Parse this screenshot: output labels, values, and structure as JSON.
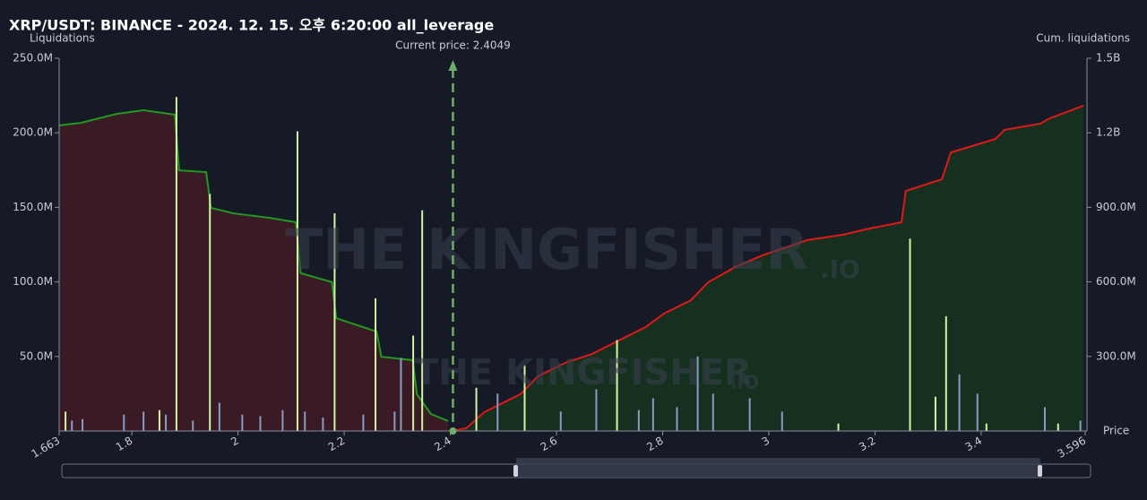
{
  "chart_data": {
    "type": "combo",
    "title": "XRP/USDT: BINANCE - 2024. 12. 15. 오후 6:20:00 all_leverage",
    "y_label": "Liquidations",
    "y2_label": "Cum. liquidations",
    "x_label": "Price",
    "watermark": [
      "THE KINGFISHER",
      ".IO"
    ],
    "annotation": {
      "text": "Current price: 2.4049",
      "x": 2.4049,
      "color": "#6fae6a"
    },
    "xlim": [
      1.663,
      3.596
    ],
    "xticks": [
      1.663,
      1.8,
      2,
      2.2,
      2.4,
      2.6,
      2.8,
      3,
      3.2,
      3.4,
      3.596
    ],
    "ylim": [
      0,
      250000000
    ],
    "yticks": [
      {
        "value": 50000000,
        "label": "50.0M"
      },
      {
        "value": 100000000,
        "label": "100.0M"
      },
      {
        "value": 150000000,
        "label": "150.0M"
      },
      {
        "value": 200000000,
        "label": "200.0M"
      },
      {
        "value": 250000000,
        "label": "250.0M"
      }
    ],
    "y2lim": [
      0,
      1500000000
    ],
    "y2ticks": [
      {
        "value": 300000000,
        "label": "300.0M"
      },
      {
        "value": 600000000,
        "label": "600.0M"
      },
      {
        "value": 900000000,
        "label": "900.0M"
      },
      {
        "value": 1200000000,
        "label": "1.2B"
      },
      {
        "value": 1500000000,
        "label": "1.5B"
      }
    ],
    "series": [
      {
        "type": "area",
        "axis": "y2",
        "color": "#1f9a1f",
        "fill": "#3a1b25",
        "x": [
          1.663,
          1.704,
          1.771,
          1.822,
          1.881,
          1.889,
          1.94,
          1.949,
          1.991,
          2.058,
          2.109,
          2.118,
          2.177,
          2.185,
          2.261,
          2.27,
          2.329,
          2.337,
          2.363,
          2.396
        ],
        "values": [
          1230000000,
          1240000000,
          1276000000,
          1291000000,
          1273000000,
          1049000000,
          1042000000,
          898000000,
          876000000,
          858000000,
          840000000,
          635000000,
          599000000,
          454000000,
          400000000,
          299000000,
          285000000,
          148000000,
          69000000,
          40000000
        ]
      },
      {
        "type": "area",
        "axis": "y2",
        "color": "#e01818",
        "fill": "#15301f",
        "x": [
          2.401,
          2.43,
          2.464,
          2.498,
          2.532,
          2.565,
          2.616,
          2.667,
          2.717,
          2.768,
          2.802,
          2.853,
          2.886,
          2.937,
          2.988,
          3.038,
          3.072,
          3.14,
          3.19,
          3.25,
          3.258,
          3.326,
          3.343,
          3.427,
          3.444,
          3.512,
          3.529,
          3.593
        ],
        "values": [
          0,
          11000000,
          76000000,
          112000000,
          148000000,
          220000000,
          274000000,
          310000000,
          364000000,
          418000000,
          472000000,
          526000000,
          599000000,
          660000000,
          707000000,
          743000000,
          768000000,
          790000000,
          815000000,
          840000000,
          966000000,
          1013000000,
          1121000000,
          1175000000,
          1212000000,
          1237000000,
          1258000000,
          1309000000
        ]
      },
      {
        "type": "bar",
        "color": "#8a9bc4",
        "x": [
          1.687,
          1.707,
          1.785,
          1.822,
          1.864,
          1.915,
          1.965,
          2.008,
          2.042,
          2.084,
          2.126,
          2.16,
          2.236,
          2.295,
          2.307,
          2.489,
          2.608,
          2.675,
          2.755,
          2.782,
          2.827,
          2.866,
          2.895,
          2.964,
          3.025,
          3.359,
          3.393,
          3.52,
          3.587
        ],
        "values": [
          7000000,
          8000000,
          11000000,
          13000000,
          11000000,
          7000000,
          19000000,
          11000000,
          10000000,
          14000000,
          13000000,
          9000000,
          11000000,
          13000000,
          49000000,
          25000000,
          13000000,
          28000000,
          14000000,
          22000000,
          16000000,
          50000000,
          25000000,
          22000000,
          13000000,
          38000000,
          25000000,
          16000000,
          7000000
        ]
      },
      {
        "type": "bar",
        "color": "#d6f2a4",
        "x": [
          1.675,
          1.852,
          1.884,
          1.947,
          2.112,
          2.182,
          2.259,
          2.33,
          2.347,
          2.449,
          2.54,
          2.714,
          3.131,
          3.266,
          3.314,
          3.334,
          3.41,
          3.545
        ],
        "values": [
          13000000,
          14000000,
          224000000,
          159000000,
          201000000,
          146000000,
          89000000,
          64000000,
          148000000,
          29000000,
          44000000,
          61000000,
          5000000,
          129000000,
          23000000,
          77000000,
          5000000,
          5000000
        ]
      }
    ]
  }
}
